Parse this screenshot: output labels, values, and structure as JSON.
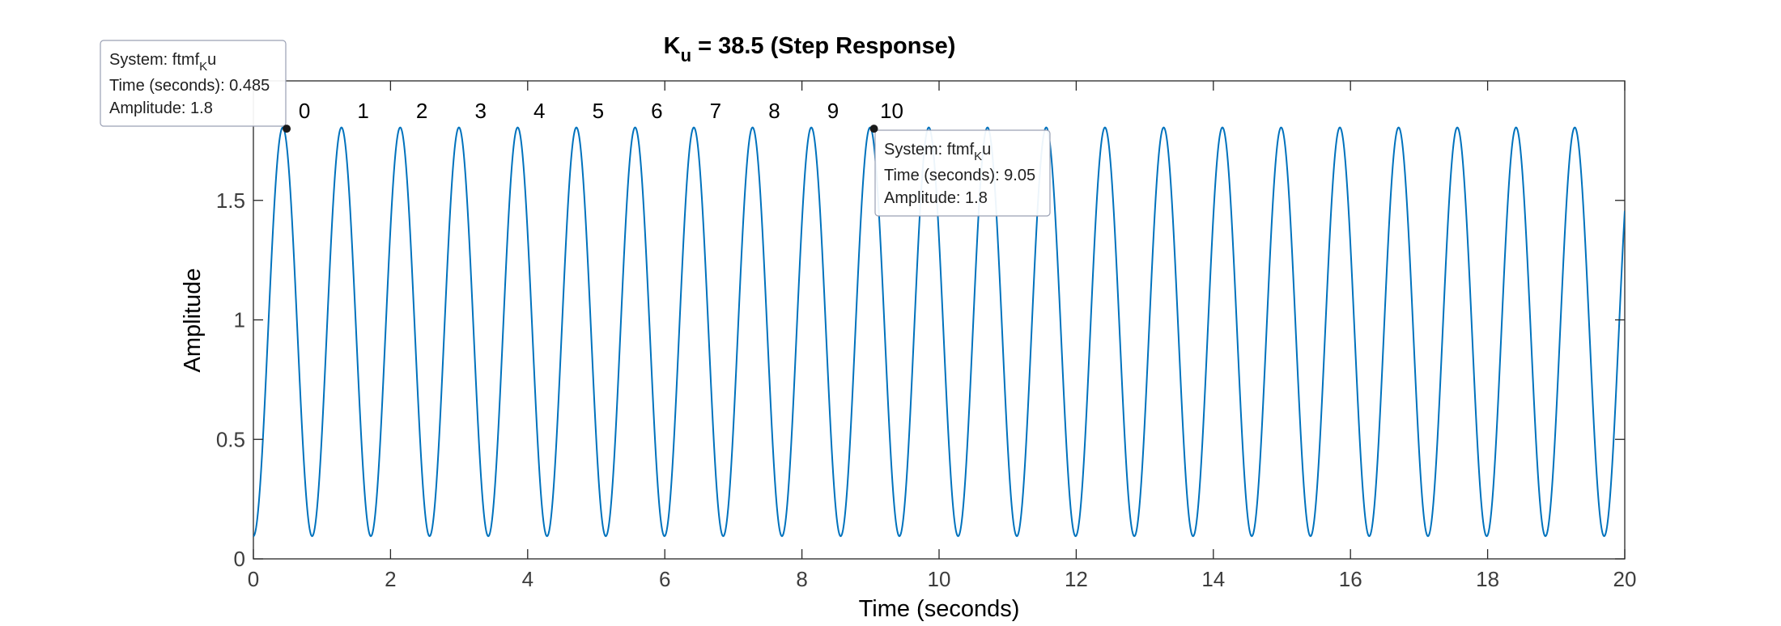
{
  "chart_data": {
    "type": "line",
    "title": {
      "main": "K",
      "subscript": "u",
      "rest": " = 38.5 (Step Response)"
    },
    "xlabel": "Time (seconds)",
    "ylabel": "Amplitude",
    "xlim": [
      0,
      20
    ],
    "ylim": [
      0,
      2
    ],
    "xticks": [
      0,
      2,
      4,
      6,
      8,
      10,
      12,
      14,
      16,
      18,
      20
    ],
    "yticks": [
      0,
      0.5,
      1,
      1.5
    ],
    "ytick_labels": [
      "0",
      "0.5",
      "1",
      "1.5"
    ],
    "grid": false,
    "line_color": "#0072BD",
    "signal": {
      "offset": 0.95,
      "amplitude": 0.855,
      "period": 0.8565,
      "first_peak_time": 0.485
    },
    "peak_labels": [
      {
        "label": "0",
        "x": 0.485
      },
      {
        "label": "1",
        "x": 1.3415
      },
      {
        "label": "2",
        "x": 2.198
      },
      {
        "label": "3",
        "x": 3.0545
      },
      {
        "label": "4",
        "x": 3.911
      },
      {
        "label": "5",
        "x": 4.7675
      },
      {
        "label": "6",
        "x": 5.624
      },
      {
        "label": "7",
        "x": 6.4805
      },
      {
        "label": "8",
        "x": 7.337
      },
      {
        "label": "9",
        "x": 8.1935
      },
      {
        "label": "10",
        "x": 9.05
      }
    ],
    "datatips": [
      {
        "x": 0.485,
        "y": 1.8,
        "system_prefix": "System: ftmf",
        "system_sub": "K",
        "system_suffix": "u",
        "time_text": "Time (seconds): 0.485",
        "amp_text": "Amplitude: 1.8"
      },
      {
        "x": 9.05,
        "y": 1.8,
        "system_prefix": "System: ftmf",
        "system_sub": "K",
        "system_suffix": "u",
        "time_text": "Time (seconds): 9.05",
        "amp_text": "Amplitude: 1.8"
      }
    ]
  }
}
